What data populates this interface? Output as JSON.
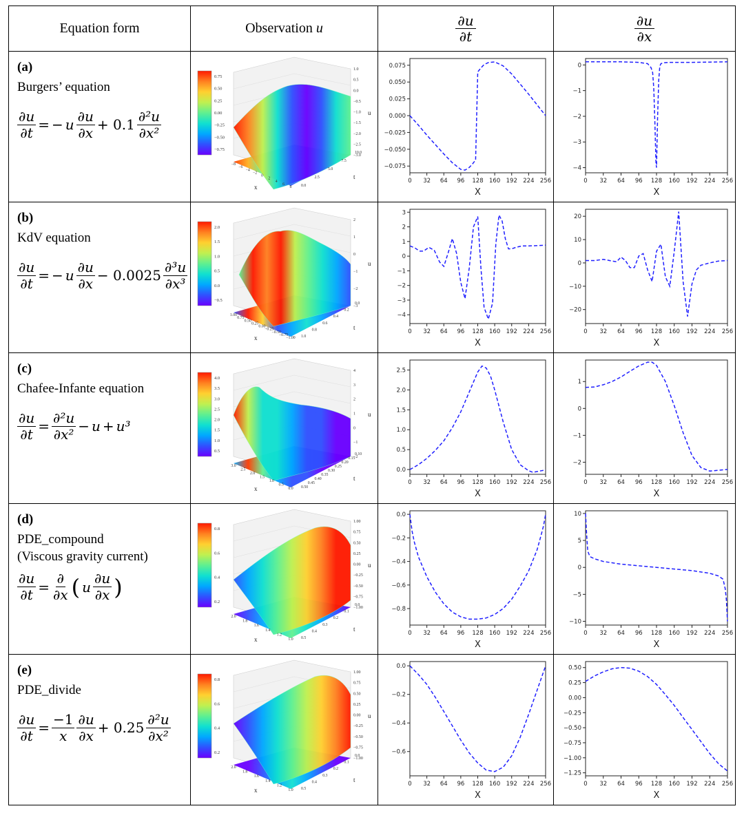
{
  "headers": {
    "equation_form": "Equation form",
    "observation": "Observation ",
    "observation_var": "u",
    "du_dt_num": "∂u",
    "du_dt_den": "∂t",
    "du_dx_num": "∂u",
    "du_dx_den": "∂x"
  },
  "rows": [
    {
      "label": "(a)",
      "name": "Burgers’ equation",
      "colorbar_ticks": [
        "0.75",
        "0.50",
        "0.25",
        "0.00",
        "−0.25",
        "−0.50",
        "−0.75"
      ],
      "zticks": [
        "1.0",
        "0.5",
        "0.0",
        "−0.5",
        "−1.0",
        "−1.5",
        "−2.0",
        "−2.5",
        "−3.0"
      ],
      "xticks": [
        "−8",
        "−6",
        "−4",
        "−2",
        "0",
        "2",
        "4",
        "6",
        "8"
      ],
      "tticks": [
        "10.0",
        "7.5",
        "5.0",
        "2.5",
        "0.0"
      ],
      "xlabel": "x",
      "tlabel": "t",
      "zlabel": "u"
    },
    {
      "label": "(b)",
      "name": "KdV equation",
      "colorbar_ticks": [
        "2.0",
        "1.5",
        "1.0",
        "0.5",
        "0.0",
        "−0.5"
      ],
      "zticks": [
        "2",
        "1",
        "0",
        "−1",
        "−2",
        "−3"
      ],
      "xticks": [
        "1.00",
        "0.75",
        "0.50",
        "0.25",
        "0.00",
        "−0.25",
        "−0.50",
        "−0.75",
        "−1.00"
      ],
      "tticks": [
        "0.0",
        "0.2",
        "0.4",
        "0.6",
        "0.8",
        "1.0"
      ],
      "xlabel": "x",
      "tlabel": "t",
      "zlabel": "u"
    },
    {
      "label": "(c)",
      "name": "Chafee-Infante equation",
      "colorbar_ticks": [
        "4.0",
        "3.5",
        "3.0",
        "2.5",
        "2.0",
        "1.5",
        "1.0",
        "0.5"
      ],
      "zticks": [
        "4",
        "3",
        "2",
        "1",
        "0",
        "−1",
        "−2"
      ],
      "xticks": [
        "3.0",
        "2.5",
        "2.0",
        "1.5",
        "1.0",
        "0.5",
        "0.0"
      ],
      "tticks": [
        "0.10",
        "0.15",
        "0.20",
        "0.25",
        "0.30",
        "0.35",
        "0.40",
        "0.45",
        "0.50"
      ],
      "xlabel": "x",
      "tlabel": "t",
      "zlabel": "u"
    },
    {
      "label": "(d)",
      "name": "PDE_compound",
      "name2": "(Viscous gravity current)",
      "colorbar_ticks": [
        "0.8",
        "0.6",
        "0.4",
        "0.2"
      ],
      "zticks": [
        "1.00",
        "0.75",
        "0.50",
        "0.25",
        "0.00",
        "−0.25",
        "−0.50",
        "−0.75",
        "−1.00"
      ],
      "xticks": [
        "2.0",
        "1.8",
        "1.6",
        "1.4",
        "1.2",
        "1.0"
      ],
      "tticks": [
        "0.0",
        "0.1",
        "0.2",
        "0.3",
        "0.4",
        "0.5"
      ],
      "xlabel": "x",
      "tlabel": "t",
      "zlabel": "u"
    },
    {
      "label": "(e)",
      "name": "PDE_divide",
      "colorbar_ticks": [
        "0.8",
        "0.6",
        "0.4",
        "0.2"
      ],
      "zticks": [
        "1.00",
        "0.75",
        "0.50",
        "0.25",
        "0.00",
        "−0.25",
        "−0.50",
        "−0.75",
        "−1.00"
      ],
      "xticks": [
        "2.0",
        "1.8",
        "1.6",
        "1.4",
        "1.2",
        "1.0"
      ],
      "tticks": [
        "0.0",
        "0.1",
        "0.2",
        "0.3",
        "0.4",
        "0.5"
      ],
      "xlabel": "x",
      "tlabel": "t",
      "zlabel": "u"
    }
  ],
  "colors": {
    "line": "#1f1fff",
    "border": "#000000"
  },
  "chart_data": [
    {
      "id": "a-dt",
      "type": "line",
      "xlabel": "X",
      "xlim": [
        0,
        256
      ],
      "ylim": [
        -0.085,
        0.085
      ],
      "xticks": [
        0,
        32,
        64,
        96,
        128,
        160,
        192,
        224,
        256
      ],
      "yticks": [
        0.075,
        0.05,
        0.025,
        0.0,
        -0.025,
        -0.05,
        -0.075
      ],
      "ytick_labels": [
        "0.075",
        "0.050",
        "0.025",
        "0.000",
        "−0.025",
        "−0.050",
        "−0.075"
      ],
      "x": [
        0,
        16,
        32,
        48,
        64,
        80,
        96,
        104,
        112,
        118,
        124,
        128,
        134,
        140,
        148,
        160,
        176,
        192,
        208,
        224,
        240,
        256
      ],
      "y": [
        0.0,
        -0.014,
        -0.029,
        -0.043,
        -0.057,
        -0.07,
        -0.08,
        -0.081,
        -0.077,
        -0.072,
        -0.066,
        0.065,
        0.071,
        0.076,
        0.079,
        0.08,
        0.074,
        0.062,
        0.047,
        0.032,
        0.016,
        0.0
      ]
    },
    {
      "id": "a-dx",
      "type": "line",
      "xlabel": "X",
      "xlim": [
        0,
        256
      ],
      "ylim": [
        -4.2,
        0.25
      ],
      "xticks": [
        0,
        32,
        64,
        96,
        128,
        160,
        192,
        224,
        256
      ],
      "yticks": [
        0,
        -1,
        -2,
        -3,
        -4
      ],
      "ytick_labels": [
        "0",
        "−1",
        "−2",
        "−3",
        "−4"
      ],
      "x": [
        0,
        32,
        64,
        96,
        112,
        118,
        121,
        123,
        125,
        127,
        128,
        130,
        132,
        134,
        136,
        140,
        150,
        160,
        192,
        224,
        256
      ],
      "y": [
        0.12,
        0.12,
        0.12,
        0.1,
        0.05,
        -0.1,
        -0.3,
        -0.9,
        -2.2,
        -3.8,
        -4.0,
        -2.0,
        -0.6,
        -0.05,
        0.05,
        0.08,
        0.1,
        0.1,
        0.1,
        0.11,
        0.12
      ]
    },
    {
      "id": "b-dt",
      "type": "line",
      "xlabel": "X",
      "xlim": [
        0,
        256
      ],
      "ylim": [
        -4.6,
        3.2
      ],
      "xticks": [
        0,
        32,
        64,
        96,
        128,
        160,
        192,
        224,
        256
      ],
      "yticks": [
        3,
        2,
        1,
        0,
        -1,
        -2,
        -3,
        -4
      ],
      "ytick_labels": [
        "3",
        "2",
        "1",
        "0",
        "−1",
        "−2",
        "−3",
        "−4"
      ],
      "x": [
        0,
        10,
        18,
        26,
        36,
        46,
        56,
        64,
        72,
        80,
        88,
        96,
        104,
        112,
        120,
        128,
        134,
        140,
        148,
        156,
        162,
        168,
        174,
        180,
        186,
        192,
        200,
        212,
        224,
        240,
        256
      ],
      "y": [
        0.7,
        0.55,
        0.35,
        0.35,
        0.6,
        0.4,
        -0.4,
        -0.7,
        0.2,
        1.2,
        0.2,
        -1.8,
        -2.9,
        -0.8,
        2.0,
        2.7,
        -0.8,
        -3.5,
        -4.3,
        -3.2,
        0.8,
        2.8,
        2.4,
        1.2,
        0.5,
        0.5,
        0.6,
        0.7,
        0.7,
        0.72,
        0.75
      ]
    },
    {
      "id": "b-dx",
      "type": "line",
      "xlabel": "X",
      "xlim": [
        0,
        256
      ],
      "ylim": [
        -26,
        23
      ],
      "xticks": [
        0,
        32,
        64,
        96,
        128,
        160,
        192,
        224,
        256
      ],
      "yticks": [
        20,
        10,
        0,
        -10,
        -20
      ],
      "ytick_labels": [
        "20",
        "10",
        "0",
        "−10",
        "−20"
      ],
      "x": [
        0,
        16,
        32,
        48,
        56,
        64,
        72,
        80,
        88,
        96,
        104,
        112,
        120,
        128,
        136,
        144,
        152,
        160,
        168,
        176,
        184,
        192,
        200,
        208,
        224,
        240,
        256
      ],
      "y": [
        1,
        1,
        1.5,
        0.8,
        0.5,
        2.5,
        1,
        -2,
        -2,
        3,
        4,
        -3,
        -8,
        5,
        8,
        -6,
        -10,
        5,
        22,
        -8,
        -23,
        -9,
        -3,
        -1,
        0,
        0.8,
        1
      ]
    },
    {
      "id": "c-dt",
      "type": "line",
      "xlabel": "X",
      "xlim": [
        0,
        256
      ],
      "ylim": [
        -0.12,
        2.75
      ],
      "xticks": [
        0,
        32,
        64,
        96,
        128,
        160,
        192,
        224,
        256
      ],
      "yticks": [
        2.5,
        2.0,
        1.5,
        1.0,
        0.5,
        0.0
      ],
      "ytick_labels": [
        "2.5",
        "2.0",
        "1.5",
        "1.0",
        "0.5",
        "0.0"
      ],
      "x": [
        0,
        16,
        32,
        48,
        64,
        80,
        96,
        112,
        128,
        136,
        144,
        152,
        160,
        176,
        192,
        208,
        224,
        232,
        240,
        248,
        256
      ],
      "y": [
        0.0,
        0.12,
        0.28,
        0.48,
        0.72,
        1.05,
        1.45,
        1.95,
        2.45,
        2.6,
        2.55,
        2.35,
        2.0,
        1.2,
        0.5,
        0.12,
        -0.03,
        -0.07,
        -0.05,
        -0.03,
        -0.01
      ]
    },
    {
      "id": "c-dx",
      "type": "line",
      "xlabel": "X",
      "xlim": [
        0,
        256
      ],
      "ylim": [
        -2.45,
        1.8
      ],
      "xticks": [
        0,
        32,
        64,
        96,
        128,
        160,
        192,
        224,
        256
      ],
      "yticks": [
        1,
        0,
        -1,
        -2
      ],
      "ytick_labels": [
        "1",
        "0",
        "−1",
        "−2"
      ],
      "x": [
        0,
        16,
        32,
        48,
        64,
        80,
        96,
        112,
        120,
        128,
        144,
        160,
        176,
        192,
        208,
        224,
        240,
        256
      ],
      "y": [
        0.78,
        0.8,
        0.88,
        1.0,
        1.17,
        1.38,
        1.58,
        1.72,
        1.72,
        1.6,
        1.0,
        0.1,
        -0.9,
        -1.75,
        -2.2,
        -2.33,
        -2.3,
        -2.27
      ]
    },
    {
      "id": "d-dt",
      "type": "line",
      "xlabel": "X",
      "xlim": [
        0,
        256
      ],
      "ylim": [
        -0.94,
        0.03
      ],
      "xticks": [
        0,
        32,
        64,
        96,
        128,
        160,
        192,
        224,
        256
      ],
      "yticks": [
        0.0,
        -0.2,
        -0.4,
        -0.6,
        -0.8
      ],
      "ytick_labels": [
        "0.0",
        "−0.2",
        "−0.4",
        "−0.6",
        "−0.8"
      ],
      "x": [
        0,
        4,
        8,
        16,
        32,
        48,
        64,
        80,
        96,
        112,
        128,
        144,
        160,
        176,
        192,
        208,
        224,
        240,
        248,
        252,
        256
      ],
      "y": [
        0.0,
        -0.14,
        -0.23,
        -0.36,
        -0.53,
        -0.66,
        -0.76,
        -0.83,
        -0.87,
        -0.89,
        -0.89,
        -0.88,
        -0.85,
        -0.8,
        -0.72,
        -0.61,
        -0.48,
        -0.3,
        -0.17,
        -0.1,
        0.0
      ]
    },
    {
      "id": "d-dx",
      "type": "line",
      "xlabel": "X",
      "xlim": [
        0,
        256
      ],
      "ylim": [
        -10.7,
        10.5
      ],
      "xticks": [
        0,
        32,
        64,
        96,
        128,
        160,
        192,
        224,
        256
      ],
      "yticks": [
        10,
        5,
        0,
        -5,
        -10
      ],
      "ytick_labels": [
        "10",
        "5",
        "0",
        "−5",
        "−10"
      ],
      "x": [
        0,
        2,
        4,
        8,
        16,
        32,
        64,
        96,
        128,
        160,
        192,
        224,
        240,
        248,
        252,
        254,
        256
      ],
      "y": [
        10,
        6,
        3,
        2,
        1.6,
        1.1,
        0.6,
        0.3,
        0,
        -0.3,
        -0.6,
        -1.1,
        -1.6,
        -2.2,
        -4,
        -6,
        -10
      ]
    },
    {
      "id": "e-dt",
      "type": "line",
      "xlabel": "X",
      "xlim": [
        0,
        256
      ],
      "ylim": [
        -0.77,
        0.03
      ],
      "xticks": [
        0,
        32,
        64,
        96,
        128,
        160,
        192,
        224,
        256
      ],
      "yticks": [
        0.0,
        -0.2,
        -0.4,
        -0.6
      ],
      "ytick_labels": [
        "0.0",
        "−0.2",
        "−0.4",
        "−0.6"
      ],
      "x": [
        0,
        16,
        32,
        48,
        64,
        80,
        96,
        112,
        128,
        144,
        160,
        176,
        192,
        208,
        224,
        240,
        256
      ],
      "y": [
        0.0,
        -0.06,
        -0.13,
        -0.22,
        -0.32,
        -0.42,
        -0.52,
        -0.61,
        -0.68,
        -0.73,
        -0.74,
        -0.71,
        -0.63,
        -0.5,
        -0.34,
        -0.17,
        0.0
      ]
    },
    {
      "id": "e-dx",
      "type": "line",
      "xlabel": "X",
      "xlim": [
        0,
        256
      ],
      "ylim": [
        -1.3,
        0.6
      ],
      "xticks": [
        0,
        32,
        64,
        96,
        128,
        160,
        192,
        224,
        256
      ],
      "yticks": [
        0.5,
        0.25,
        0.0,
        -0.25,
        -0.5,
        -0.75,
        -1.0,
        -1.25
      ],
      "ytick_labels": [
        "0.50",
        "0.25",
        "0.00",
        "−0.25",
        "−0.50",
        "−0.75",
        "−1.00",
        "−1.25"
      ],
      "x": [
        0,
        16,
        32,
        48,
        64,
        80,
        96,
        112,
        128,
        144,
        160,
        176,
        192,
        208,
        224,
        240,
        256
      ],
      "y": [
        0.27,
        0.36,
        0.43,
        0.48,
        0.5,
        0.49,
        0.44,
        0.35,
        0.22,
        0.05,
        -0.13,
        -0.33,
        -0.53,
        -0.73,
        -0.93,
        -1.1,
        -1.22
      ]
    }
  ]
}
